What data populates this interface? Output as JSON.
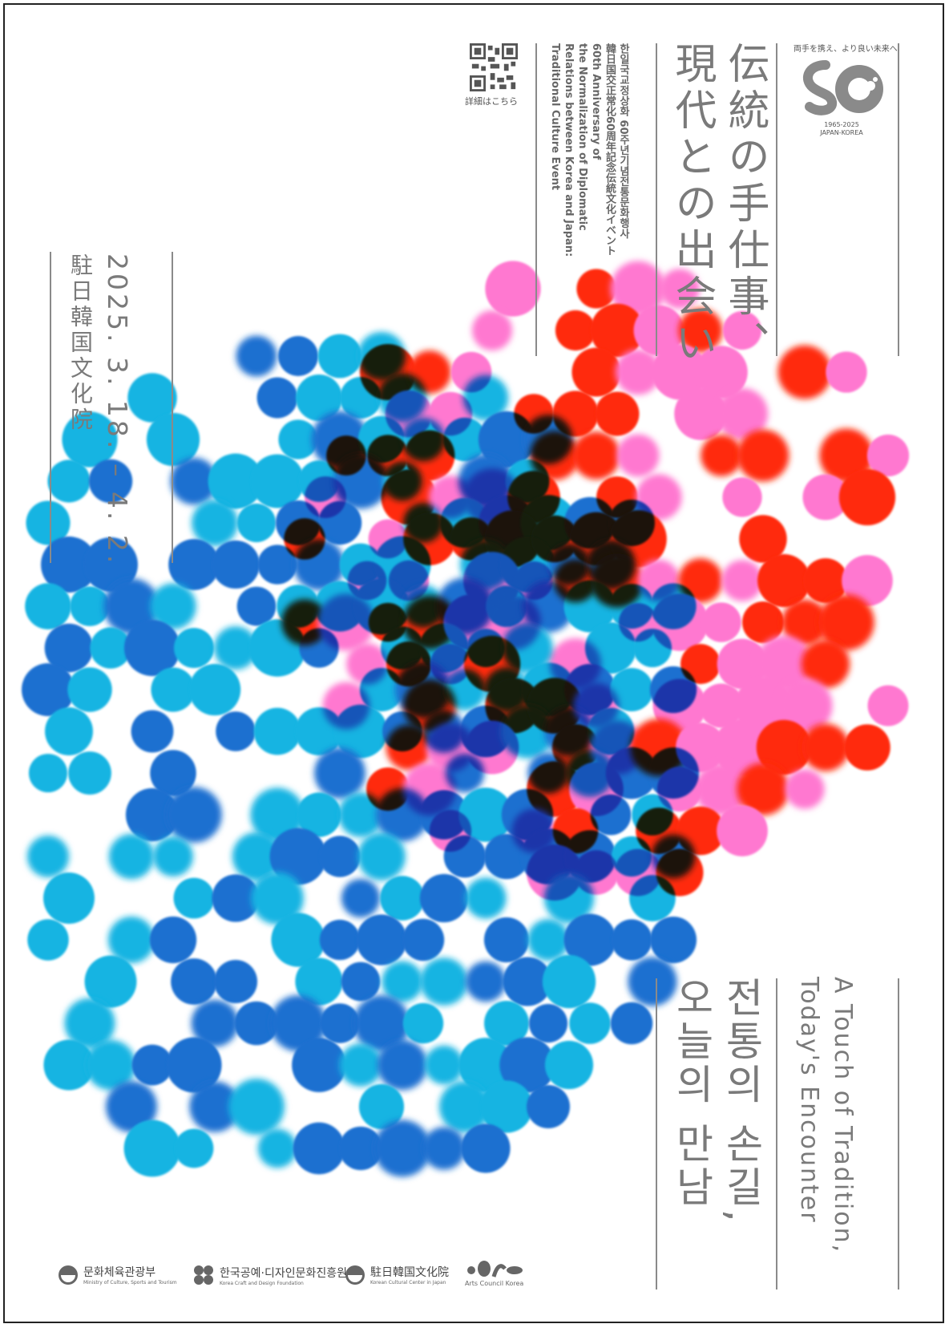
{
  "titles": {
    "jp_line1": "伝統の手仕事、",
    "jp_line2": "現代との出会い",
    "ko_line1": "전통의 손길,",
    "ko_line2": "오늘의 만남",
    "en_line1": "A Touch of Tradition,",
    "en_line2": "Today's Encounter"
  },
  "event_info": [
    "한일국교정상화 60주년기념전통문화행사",
    "韓日国交正常化60周年記念伝統文化イベント",
    "60th Anniversary of",
    "the Normalization of Diplomatic",
    "Relations between Korea and Japan:",
    "Traditional Culture Event"
  ],
  "qr_caption": "詳細はこちら",
  "date": "2025. 3. 18. – 4. 2.",
  "venue": "駐日韓国文化院",
  "anniversary_logo": {
    "tagline": "両手を携え、より良い未来へ",
    "years": "1965-2025",
    "label": "JAPAN-KOREA"
  },
  "sponsors": [
    {
      "name": "문화체육관광부",
      "sub": "Ministry of Culture, Sports and Tourism"
    },
    {
      "name": "한국공예·디자인문화진흥원",
      "sub": "Korea Craft and Design Foundation"
    },
    {
      "name": "駐日韓国文化院",
      "sub": "Korean Cultural Center in Japan"
    },
    {
      "name": "",
      "sub": "Arts Council Korea"
    }
  ],
  "colors": {
    "dot_light_blue": "#16b4e2",
    "dot_dark_blue": "#1a6fd0",
    "dot_red": "#ff2a10",
    "dot_pink": "#ff78d0",
    "text_gray": "#7a7a7a"
  },
  "icons": {
    "qr": "qr-code-icon",
    "anniversary_logo": "anniversary-60-logo-icon"
  }
}
